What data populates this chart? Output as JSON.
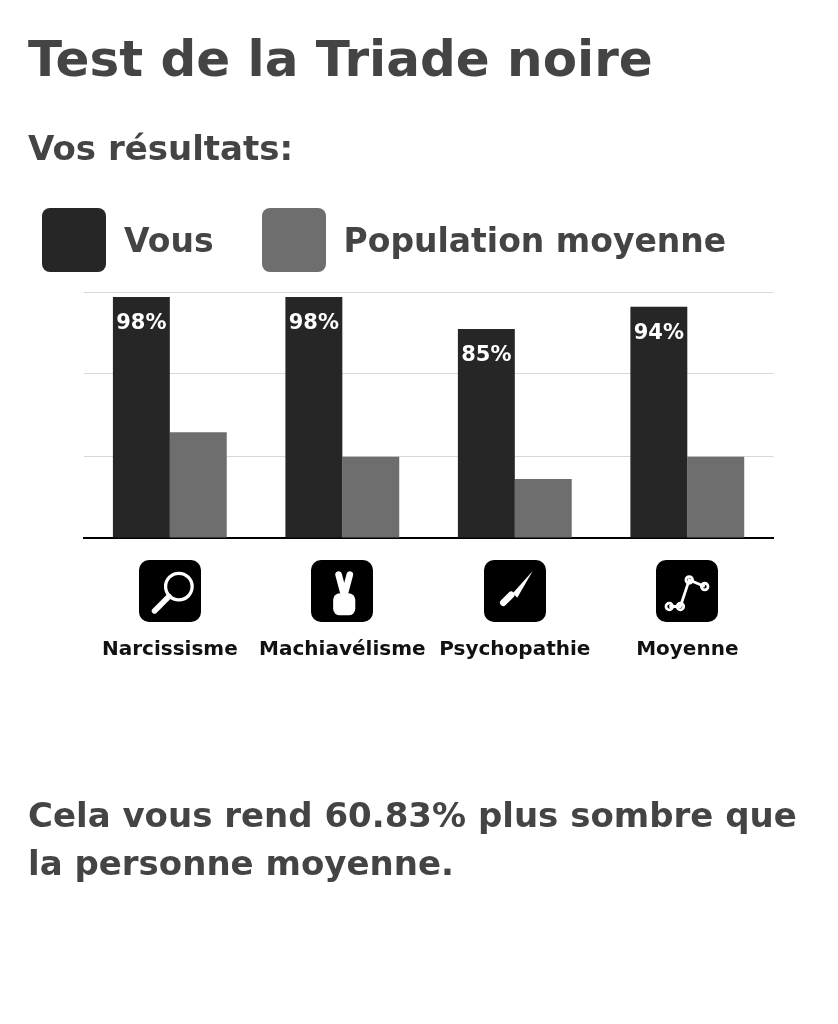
{
  "chart_data": {
    "type": "bar",
    "title": "Test de la Triade noire",
    "subtitle": "Vos résultats:",
    "categories": [
      "Narcissisme",
      "Machiavélisme",
      "Psychopathie",
      "Moyenne"
    ],
    "series": [
      {
        "name": "Vous",
        "color": "#262626",
        "values": [
          98,
          98,
          85,
          94
        ],
        "value_labels": [
          "98%",
          "98%",
          "85%",
          "94%"
        ]
      },
      {
        "name": "Population moyenne",
        "color": "#6e6e6e",
        "values": [
          43,
          33,
          24,
          33
        ]
      }
    ],
    "ylim": [
      0,
      100
    ],
    "yticks": [
      {
        "value": 0,
        "label": null
      },
      {
        "value": 33.33,
        "label": null
      },
      {
        "value": 66.67,
        "label": null
      },
      {
        "value": 100,
        "label": null
      }
    ],
    "grid": "y",
    "legend": "top left",
    "tick_labels": "x",
    "annotations": [
      "Cela vous rend 60.83% plus sombre que la personne moyenne."
    ]
  }
}
